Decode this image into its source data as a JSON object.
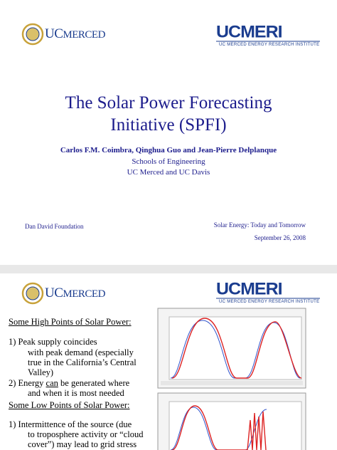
{
  "slide1": {
    "logo_left": {
      "uc": "UC",
      "merced": "MERCED"
    },
    "logo_right": {
      "name": "UCMERI",
      "subtitle": "UC MERCED ENERGY RESEARCH INSTITUTE"
    },
    "title": [
      "The Solar Power Forecasting",
      "Initiative (SPFI)"
    ],
    "authors": "Carlos F.M. Coimbra, Qinghua Guo and Jean-Pierre Delplanque",
    "affiliations": [
      "Schools of Engineering",
      "UC Merced and UC Davis"
    ],
    "footer_left": "Dan David Foundation",
    "footer_right": [
      "Solar Energy: Today and Tomorrow",
      "September 26, 2008"
    ]
  },
  "slide2": {
    "logo_left": {
      "uc": "UC",
      "merced": "MERCED"
    },
    "logo_right": {
      "name": "UCMERI",
      "subtitle": "UC MERCED ENERGY RESEARCH INSTITUTE"
    },
    "high_heading": "Some High Points of Solar Power:",
    "high_item1": [
      "1) Peak supply coincides",
      "with peak demand (especially",
      "true in the California’s Central",
      "Valley)"
    ],
    "high_item2": {
      "lead": "2) Energy ",
      "underlined": "can",
      "rest": " be generated where",
      "line2": "and when it is most needed"
    },
    "low_heading": "Some Low Points of Solar Power:",
    "low_item1": [
      "1) Intermittence of the source (due",
      "to troposphere activity or “cloud",
      "cover”) may lead to grid stress"
    ]
  }
}
